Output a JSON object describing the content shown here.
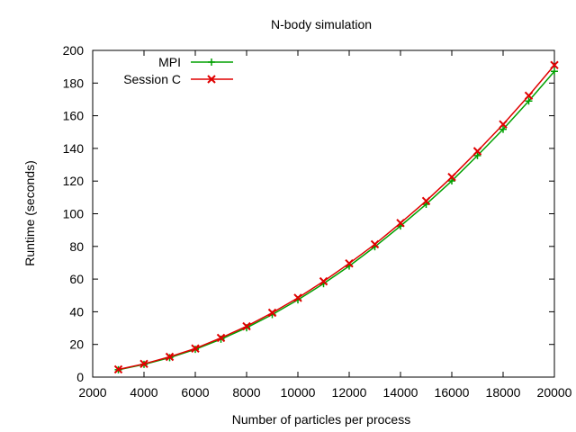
{
  "chart_data": {
    "type": "line",
    "title": "N-body simulation",
    "xlabel": "Number of particles per process",
    "ylabel": "Runtime (seconds)",
    "xlim": [
      2000,
      20000
    ],
    "ylim": [
      0,
      200
    ],
    "xticks": [
      2000,
      4000,
      6000,
      8000,
      10000,
      12000,
      14000,
      16000,
      18000,
      20000
    ],
    "yticks": [
      0,
      20,
      40,
      60,
      80,
      100,
      120,
      140,
      160,
      180,
      200
    ],
    "grid": false,
    "legend_position": "top-left",
    "x": [
      3000,
      4000,
      5000,
      6000,
      7000,
      8000,
      9000,
      10000,
      11000,
      12000,
      13000,
      14000,
      15000,
      16000,
      17000,
      18000,
      19000,
      20000
    ],
    "series": [
      {
        "name": "MPI",
        "color": "#00a000",
        "marker": "plus",
        "values": [
          4.5,
          7.8,
          11.9,
          17.0,
          23.2,
          30.2,
          38.3,
          47.3,
          57.2,
          68.0,
          79.8,
          92.5,
          105.8,
          120.1,
          135.6,
          151.7,
          169.0,
          187.2
        ]
      },
      {
        "name": "Session C",
        "color": "#e00000",
        "marker": "cross",
        "values": [
          4.7,
          8.1,
          12.4,
          17.5,
          24.0,
          31.1,
          39.4,
          48.5,
          58.6,
          69.6,
          81.3,
          94.3,
          107.8,
          122.5,
          138.3,
          154.7,
          172.3,
          191.0
        ]
      }
    ]
  }
}
